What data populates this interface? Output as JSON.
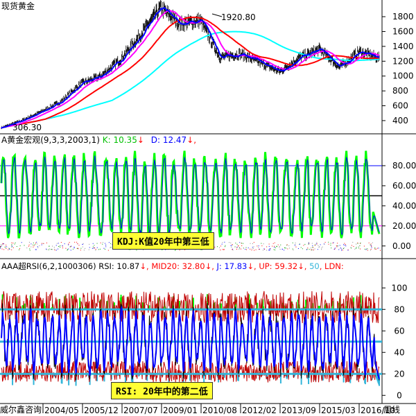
{
  "panels": {
    "price": {
      "title": "现货黄金",
      "peak_label": "1920.80",
      "low_label": "306.30",
      "y_ticks": [
        "1800",
        "1600",
        "1400",
        "1200",
        "1000",
        "800",
        "600",
        "400"
      ]
    },
    "kdj": {
      "name": "A黄金宏观(9,3,3,2003,1)",
      "k_label": "K: 10.35",
      "d_label": "D: 12.47",
      "down_arrow": "↓",
      "y_ticks": [
        "80.00",
        "60.00",
        "40.00",
        "20.00",
        "0.00"
      ],
      "annotation": "KDJ:K值20年中第三低"
    },
    "rsi": {
      "name": "AAA超RSI(6,2,1000306)",
      "rsi_label": "RSI: 10.87",
      "mid_label": "MID20: 32.80",
      "j_label": "J: 17.83",
      "up_label": "UP: 59.32",
      "level_label": "50",
      "ldn_label": "LDN:",
      "down_arrow": "↓",
      "y_ticks": [
        "100",
        "80",
        "60",
        "40",
        "20",
        "0"
      ],
      "annotation": "RSI: 20年中的第二低"
    }
  },
  "x_axis": {
    "source_label": "威尔鑫咨询",
    "dates": [
      "2004/05",
      "2005/12",
      "2007/07",
      "2009/01",
      "2010/08",
      "2012/02",
      "2013/09",
      "2015/03",
      "2016/10"
    ],
    "period_label": "周线"
  },
  "colors": {
    "price": "#000000",
    "ma_short": "#0000ff",
    "ma_mid": "#ff00ff",
    "ma_long": "#ff0000",
    "ma_longest": "#00ffff",
    "k_line": "#00ff00",
    "d_line": "#0000ff",
    "rsi_band": "#c00000",
    "rsi_j": "#0000ff",
    "rsi_hist": "#00ff00",
    "rsi_level": "#33b5d9",
    "annotation_bg": "#ffff33"
  },
  "chart_data": [
    {
      "type": "line",
      "title": "现货黄金",
      "x": [
        "2004/05",
        "2005/12",
        "2007/07",
        "2009/01",
        "2010/08",
        "2012/02",
        "2013/09",
        "2015/03",
        "2016/10"
      ],
      "series": [
        {
          "values": [
            400,
            510,
            660,
            860,
            1230,
            1740,
            1330,
            1190,
            1290
          ]
        }
      ],
      "peak": 1920.8,
      "low": 306.3,
      "ylim": [
        250,
        1950
      ]
    },
    {
      "type": "line",
      "title": "A黄金宏观(9,3,3,2003,1)",
      "series": [
        {
          "name": "K",
          "last": 10.35
        },
        {
          "name": "D",
          "last": 12.47
        }
      ],
      "reference_lines": [
        80,
        50,
        20
      ],
      "ylim": [
        -5,
        100
      ]
    },
    {
      "type": "line",
      "title": "AAA超RSI(6,2,1000306)",
      "series": [
        {
          "name": "RSI",
          "last": 10.87
        },
        {
          "name": "MID20",
          "last": 32.8
        },
        {
          "name": "J",
          "last": 17.83
        },
        {
          "name": "UP",
          "last": 59.32
        },
        {
          "name": "LDN",
          "last": null
        }
      ],
      "reference_lines": [
        80,
        50,
        20
      ],
      "ylim": [
        -5,
        115
      ]
    }
  ]
}
